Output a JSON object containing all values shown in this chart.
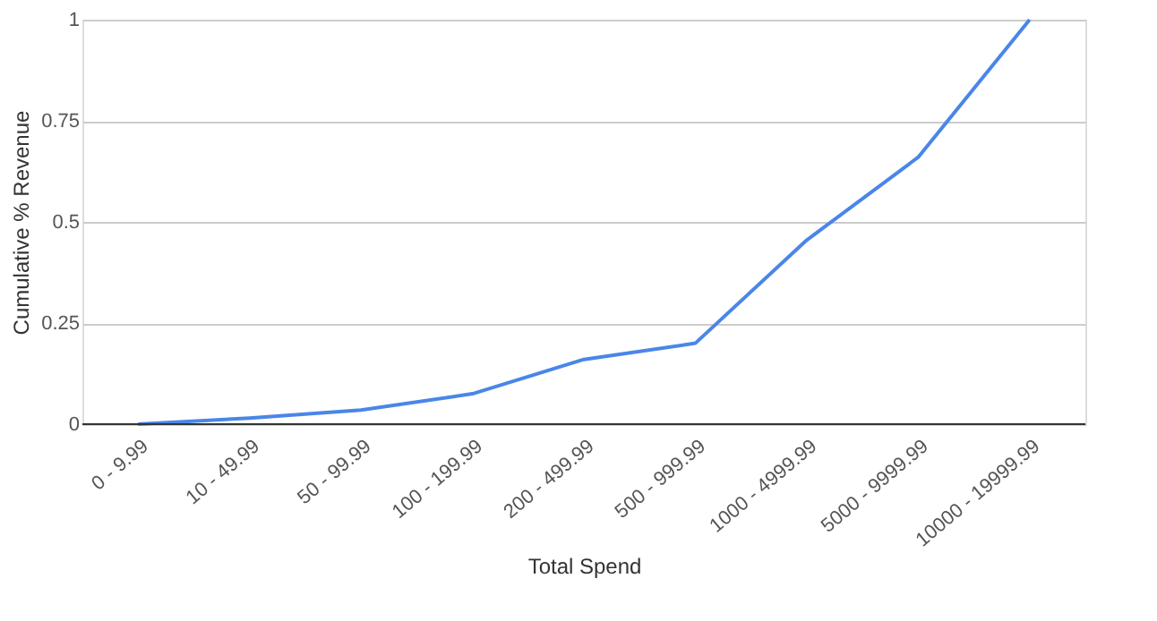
{
  "chart_data": {
    "type": "line",
    "xlabel": "Total Spend",
    "ylabel": "Cumulative % Revenue",
    "categories": [
      "0 - 9.99",
      "10 - 49.99",
      "50 - 99.99",
      "100 - 199.99",
      "200 - 499.99",
      "500 - 999.99",
      "1000 - 4999.99",
      "5000 - 9999.99",
      "10000 - 19999.99"
    ],
    "series": [
      {
        "color": "#4a86e8",
        "values": [
          0,
          0.015,
          0.035,
          0.075,
          0.16,
          0.2,
          0.455,
          0.66,
          1.0
        ]
      }
    ],
    "ylim": [
      0,
      1
    ],
    "yticks": [
      0,
      0.25,
      0.5,
      0.75,
      1
    ],
    "grid": "y",
    "legend": false,
    "marker": "none",
    "line_style": "solid"
  }
}
